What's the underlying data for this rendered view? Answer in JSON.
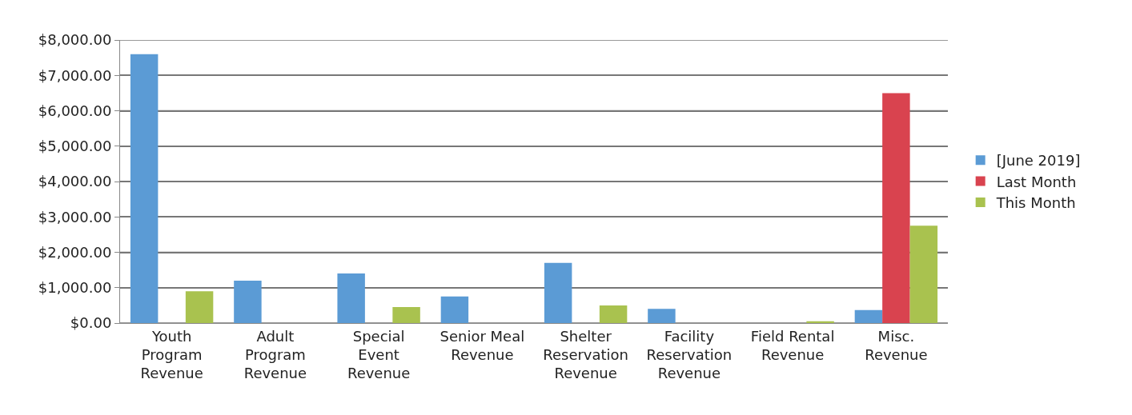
{
  "chart_data": {
    "type": "bar",
    "categories": [
      "Youth Program Revenue",
      "Adult Program Revenue",
      "Special Event Revenue",
      "Senior Meal Revenue",
      "Shelter Reservation Revenue",
      "Facility Reservation Revenue",
      "Field Rental Revenue",
      "Misc. Revenue"
    ],
    "series": [
      {
        "name": "[June 2019]",
        "color": "#5b9bd5",
        "values": [
          7600,
          1200,
          1400,
          750,
          1700,
          400,
          0,
          370
        ]
      },
      {
        "name": "Last Month",
        "color": "#d9434f",
        "values": [
          0,
          0,
          0,
          0,
          0,
          0,
          0,
          6500
        ]
      },
      {
        "name": "This Month",
        "color": "#a9c24f",
        "values": [
          900,
          0,
          450,
          0,
          500,
          0,
          50,
          2750
        ]
      }
    ],
    "ylim": [
      0,
      8000
    ],
    "yticks": [
      {
        "value": 0,
        "label": "$0.00"
      },
      {
        "value": 1000,
        "label": "$1,000.00"
      },
      {
        "value": 2000,
        "label": "$2,000.00"
      },
      {
        "value": 3000,
        "label": "$3,000.00"
      },
      {
        "value": 4000,
        "label": "$4,000.00"
      },
      {
        "value": 5000,
        "label": "$5,000.00"
      },
      {
        "value": 6000,
        "label": "$6,000.00"
      },
      {
        "value": 7000,
        "label": "$7,000.00"
      },
      {
        "value": 8000,
        "label": "$8,000.00"
      }
    ],
    "grid": "y",
    "legend": "right"
  }
}
